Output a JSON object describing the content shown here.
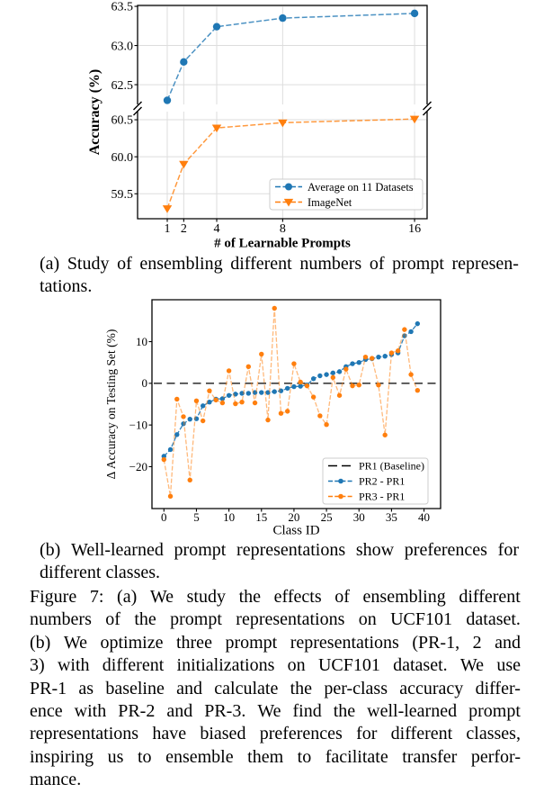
{
  "figure": {
    "caption_a_lines": [
      "(a) Study of ensembling different numbers of prompt represen-",
      "tations."
    ],
    "caption_b_lines": [
      "(b) Well-learned prompt representations show preferences for",
      "different classes."
    ],
    "main_caption_lines": [
      "Figure 7: (a) We study the effects of ensembling different",
      "numbers of the prompt representations on UCF101 dataset.",
      "(b) We optimize three prompt representations (PR-1, 2 and",
      "3) with different initializations on UCF101 dataset. We use",
      "PR-1 as baseline and calculate the per-class accuracy differ-",
      "ence with PR-2 and PR-3. We find the well-learned prompt",
      "representations have biased preferences for different classes,",
      "inspiring us to ensemble them to facilitate transfer perfor-",
      "mance."
    ]
  },
  "colors": {
    "blue": "#1f77b4",
    "orange": "#ff7f0e",
    "grid": "#dddddd",
    "legend_border": "#cccccc",
    "black": "#000000"
  },
  "chart_data": [
    {
      "id": "chart-a",
      "type": "line",
      "title": "",
      "xlabel": "# of Learnable Prompts",
      "ylabel": "Accuracy (%)",
      "x": [
        1,
        2,
        4,
        8,
        16
      ],
      "xticks": [
        1,
        2,
        4,
        8,
        16
      ],
      "xlim": [
        -0.8,
        16.76
      ],
      "broken_y_axis": true,
      "grid": true,
      "upper": {
        "yticks": [
          62.5,
          63.0,
          63.5
        ],
        "ylim": [
          62.248,
          63.512
        ]
      },
      "lower": {
        "yticks": [
          59.5,
          60.0,
          60.5
        ],
        "ylim": [
          59.163,
          60.61
        ]
      },
      "legend_position": "lower right",
      "series": [
        {
          "name": "Average on 11 Datasets",
          "color": "#1f77b4",
          "marker": "circle",
          "linestyle": "dashed",
          "axis": "upper",
          "values": [
            62.3,
            62.79,
            63.24,
            63.35,
            63.41
          ]
        },
        {
          "name": "ImageNet",
          "color": "#ff7f0e",
          "marker": "triangle-down",
          "linestyle": "dashed",
          "axis": "lower",
          "values": [
            59.3,
            59.9,
            60.39,
            60.46,
            60.51
          ]
        }
      ]
    },
    {
      "id": "chart-b",
      "type": "line",
      "title": "",
      "xlabel": "Class ID",
      "ylabel": "Δ Accuracy on Testing Set (%)",
      "xticks": [
        0,
        5,
        10,
        15,
        20,
        25,
        30,
        35,
        40
      ],
      "yticks": [
        -20,
        -10,
        0,
        10
      ],
      "xlim": [
        -1.84,
        42.55
      ],
      "ylim": [
        -30.05,
        20.05
      ],
      "grid": false,
      "legend_position": "lower right",
      "series": [
        {
          "name": "PR1 (Baseline)",
          "color": "#000000",
          "kind": "hline",
          "y": 0,
          "linestyle": "dashed"
        },
        {
          "name": "PR2 - PR1",
          "color": "#1f77b4",
          "kind": "line",
          "marker": "circle",
          "linestyle": "dashed",
          "values": [
            -17.5,
            -15.9,
            -12.3,
            -9.7,
            -8.6,
            -8.5,
            -5.4,
            -4.5,
            -3.8,
            -3.7,
            -2.9,
            -2.6,
            -2.4,
            -2.4,
            -2.2,
            -2.2,
            -2.2,
            -2.0,
            -1.8,
            -1.2,
            -0.8,
            -0.7,
            -0.4,
            1.1,
            1.8,
            2.1,
            2.5,
            2.8,
            4.0,
            4.7,
            5.0,
            5.7,
            5.9,
            6.3,
            6.5,
            6.9,
            7.3,
            11.4,
            12.4,
            14.3
          ]
        },
        {
          "name": "PR3 - PR1",
          "color": "#ff7f0e",
          "kind": "line",
          "marker": "circle",
          "linestyle": "dashed",
          "values": [
            -18.3,
            -27.1,
            -3.8,
            -8.0,
            -23.2,
            -4.2,
            -9.0,
            -1.8,
            -4.0,
            -4.7,
            3.0,
            -4.9,
            -4.5,
            4.0,
            -4.7,
            7.0,
            -8.8,
            18.0,
            -7.2,
            -6.7,
            4.7,
            0.3,
            -0.6,
            -3.3,
            -7.8,
            -9.9,
            1.4,
            -2.9,
            3.4,
            -0.6,
            -0.4,
            6.3,
            6.0,
            -0.4,
            -12.4,
            7.3,
            7.8,
            12.9,
            2.1,
            -1.7
          ]
        }
      ]
    }
  ]
}
